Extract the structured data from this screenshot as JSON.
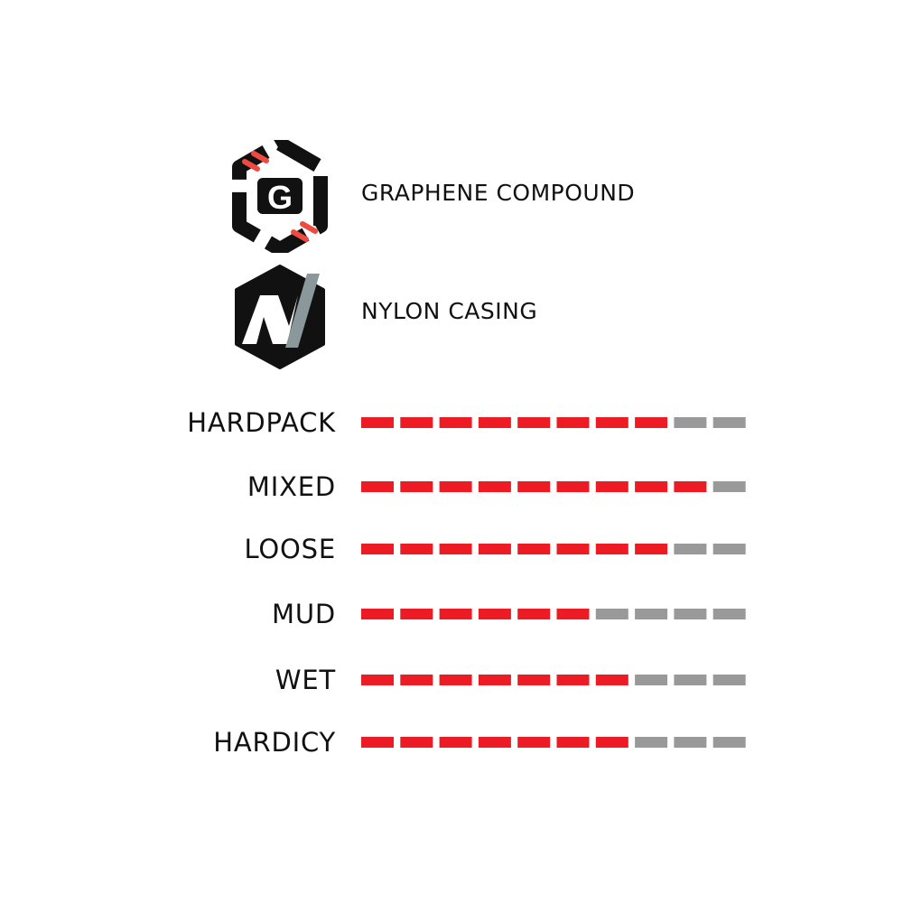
{
  "features": [
    {
      "label": "GRAPHENE COMPOUND",
      "icon": "graphene-g-hexagon-icon"
    },
    {
      "label": "NYLON CASING",
      "icon": "nylon-n-hexagon-icon"
    }
  ],
  "chart_data": {
    "type": "bar",
    "categories": [
      "HARDPACK",
      "MIXED",
      "LOOSE",
      "MUD",
      "WET",
      "HARDICY"
    ],
    "values": [
      8,
      9,
      8,
      6,
      7,
      7
    ],
    "max": 10,
    "xlabel": "",
    "ylabel": "",
    "colors": {
      "filled": "#ed1c24",
      "empty": "#999999"
    }
  }
}
